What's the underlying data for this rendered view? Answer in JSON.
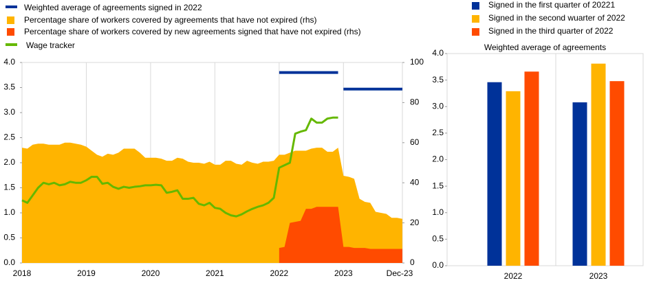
{
  "chart_data": [
    {
      "type": "combo",
      "x": [
        "2018-01",
        "2018-02",
        "2018-03",
        "2018-04",
        "2018-05",
        "2018-06",
        "2018-07",
        "2018-08",
        "2018-09",
        "2018-10",
        "2018-11",
        "2018-12",
        "2019-01",
        "2019-02",
        "2019-03",
        "2019-04",
        "2019-05",
        "2019-06",
        "2019-07",
        "2019-08",
        "2019-09",
        "2019-10",
        "2019-11",
        "2019-12",
        "2020-01",
        "2020-02",
        "2020-03",
        "2020-04",
        "2020-05",
        "2020-06",
        "2020-07",
        "2020-08",
        "2020-09",
        "2020-10",
        "2020-11",
        "2020-12",
        "2021-01",
        "2021-02",
        "2021-03",
        "2021-04",
        "2021-05",
        "2021-06",
        "2021-07",
        "2021-08",
        "2021-09",
        "2021-10",
        "2021-11",
        "2021-12",
        "2022-01",
        "2022-02",
        "2022-03",
        "2022-04",
        "2022-05",
        "2022-06",
        "2022-07",
        "2022-08",
        "2022-09",
        "2022-10",
        "2022-11",
        "2022-12",
        "2023-01",
        "2023-02",
        "2023-03",
        "2023-04",
        "2023-05",
        "2023-06",
        "2023-07",
        "2023-08",
        "2023-09",
        "2023-10",
        "2023-11",
        "2023-12"
      ],
      "series": [
        {
          "name": "Weighted average of agreements signed in 2022",
          "color": "#003299",
          "kind": "line",
          "axis": "y",
          "values": [
            null,
            null,
            null,
            null,
            null,
            null,
            null,
            null,
            null,
            null,
            null,
            null,
            null,
            null,
            null,
            null,
            null,
            null,
            null,
            null,
            null,
            null,
            null,
            null,
            null,
            null,
            null,
            null,
            null,
            null,
            null,
            null,
            null,
            null,
            null,
            null,
            null,
            null,
            null,
            null,
            null,
            null,
            null,
            null,
            null,
            null,
            null,
            null,
            3.8,
            3.8,
            3.8,
            3.8,
            3.8,
            3.8,
            3.8,
            3.8,
            3.8,
            3.8,
            3.8,
            3.8,
            3.47,
            3.47,
            3.47,
            3.47,
            3.47,
            3.47,
            3.47,
            3.47,
            3.47,
            3.47,
            3.47,
            3.47
          ]
        },
        {
          "name": "Percentage share of workers covered by agreements that have not expired (rhs)",
          "color": "#ffb400",
          "kind": "area",
          "axis": "y2",
          "values": [
            57.5,
            57,
            59,
            59.5,
            59.5,
            59,
            59,
            59,
            60,
            60,
            59.5,
            59,
            58,
            56,
            54,
            53,
            54.5,
            54,
            55,
            57,
            57,
            57,
            55,
            52.5,
            52.5,
            52.5,
            52,
            51,
            51,
            52.5,
            52,
            50.5,
            50,
            50,
            49.5,
            50.5,
            49,
            49,
            51,
            51,
            49.5,
            49,
            51,
            50,
            49.5,
            50.5,
            50.5,
            51,
            54,
            54,
            55,
            56,
            56,
            56,
            57,
            57.5,
            57.5,
            55.5,
            55.5,
            57.5,
            43.5,
            43,
            42,
            32,
            30.5,
            30,
            25.5,
            25,
            24.5,
            22.5,
            22.5,
            22
          ]
        },
        {
          "name": "Percentage share of workers covered by new agreements signed that have not expired (rhs)",
          "color": "#ff4b00",
          "kind": "area",
          "axis": "y2",
          "values": [
            null,
            null,
            null,
            null,
            null,
            null,
            null,
            null,
            null,
            null,
            null,
            null,
            null,
            null,
            null,
            null,
            null,
            null,
            null,
            null,
            null,
            null,
            null,
            null,
            null,
            null,
            null,
            null,
            null,
            null,
            null,
            null,
            null,
            null,
            null,
            null,
            null,
            null,
            null,
            null,
            null,
            null,
            null,
            null,
            null,
            null,
            null,
            null,
            7.5,
            8,
            20,
            20.5,
            21,
            27,
            27,
            28,
            28,
            28,
            28,
            28,
            8,
            8,
            7.5,
            7.5,
            7.5,
            7,
            7,
            7,
            7,
            7,
            7,
            7
          ]
        },
        {
          "name": "Wage tracker",
          "color": "#65b800",
          "kind": "line",
          "axis": "y",
          "values": [
            1.25,
            1.2,
            1.35,
            1.5,
            1.6,
            1.57,
            1.6,
            1.55,
            1.57,
            1.62,
            1.6,
            1.6,
            1.65,
            1.72,
            1.72,
            1.58,
            1.6,
            1.52,
            1.48,
            1.52,
            1.5,
            1.52,
            1.53,
            1.55,
            1.55,
            1.56,
            1.55,
            1.4,
            1.42,
            1.45,
            1.28,
            1.28,
            1.3,
            1.18,
            1.15,
            1.2,
            1.1,
            1.08,
            1.0,
            0.95,
            0.93,
            0.97,
            1.03,
            1.08,
            1.12,
            1.15,
            1.2,
            1.3,
            1.9,
            1.95,
            2.0,
            2.58,
            2.62,
            2.65,
            2.88,
            2.8,
            2.8,
            2.88,
            2.9,
            2.9,
            null,
            null,
            null,
            null,
            null,
            null,
            null,
            null,
            null,
            null,
            null,
            null
          ]
        }
      ],
      "ylim": [
        0,
        4
      ],
      "yticks": [
        {
          "value": 0,
          "label": "0.0"
        },
        {
          "value": 0.5,
          "label": "0.5"
        },
        {
          "value": 1,
          "label": "1.0"
        },
        {
          "value": 1.5,
          "label": "1.5"
        },
        {
          "value": 2,
          "label": "2.0"
        },
        {
          "value": 2.5,
          "label": "2.5"
        },
        {
          "value": 3,
          "label": "3.0"
        },
        {
          "value": 3.5,
          "label": "3.5"
        },
        {
          "value": 4,
          "label": "4.0"
        }
      ],
      "y2lim": [
        0,
        100
      ],
      "y2ticks": [
        0,
        20,
        40,
        60,
        80,
        100
      ],
      "xticks": [
        {
          "value": "2018-01",
          "label": "2018"
        },
        {
          "value": "2019-01",
          "label": "2019"
        },
        {
          "value": "2020-01",
          "label": "2020"
        },
        {
          "value": "2021-01",
          "label": "2021"
        },
        {
          "value": "2022-01",
          "label": "2022"
        },
        {
          "value": "2023-01",
          "label": "2023"
        },
        {
          "value": "2023-12",
          "label": "Dec-23"
        }
      ],
      "grid": true
    },
    {
      "type": "bar",
      "title": "Weighted average of agreements",
      "categories": [
        "2022",
        "2023"
      ],
      "series": [
        {
          "name": "Signed in the first quarter of 20221",
          "color": "#003299",
          "values": [
            3.46,
            3.08
          ]
        },
        {
          "name": "Signed in the second wuarter of 2022",
          "color": "#ffb400",
          "values": [
            3.29,
            3.81
          ]
        },
        {
          "name": "Signed in the third quarter of 2022",
          "color": "#ff4b00",
          "values": [
            3.66,
            3.48
          ]
        }
      ],
      "ylim": [
        0,
        4
      ],
      "yticks": [
        {
          "value": 0,
          "label": "0.0"
        },
        {
          "value": 0.5,
          "label": "0.5"
        },
        {
          "value": 1,
          "label": "1.0"
        },
        {
          "value": 1.5,
          "label": "1.5"
        },
        {
          "value": 2,
          "label": "2.0"
        },
        {
          "value": 2.5,
          "label": "2.5"
        },
        {
          "value": 3,
          "label": "3.0"
        },
        {
          "value": 3.5,
          "label": "3.5"
        },
        {
          "value": 4,
          "label": "4.0"
        }
      ],
      "grid": false
    }
  ]
}
